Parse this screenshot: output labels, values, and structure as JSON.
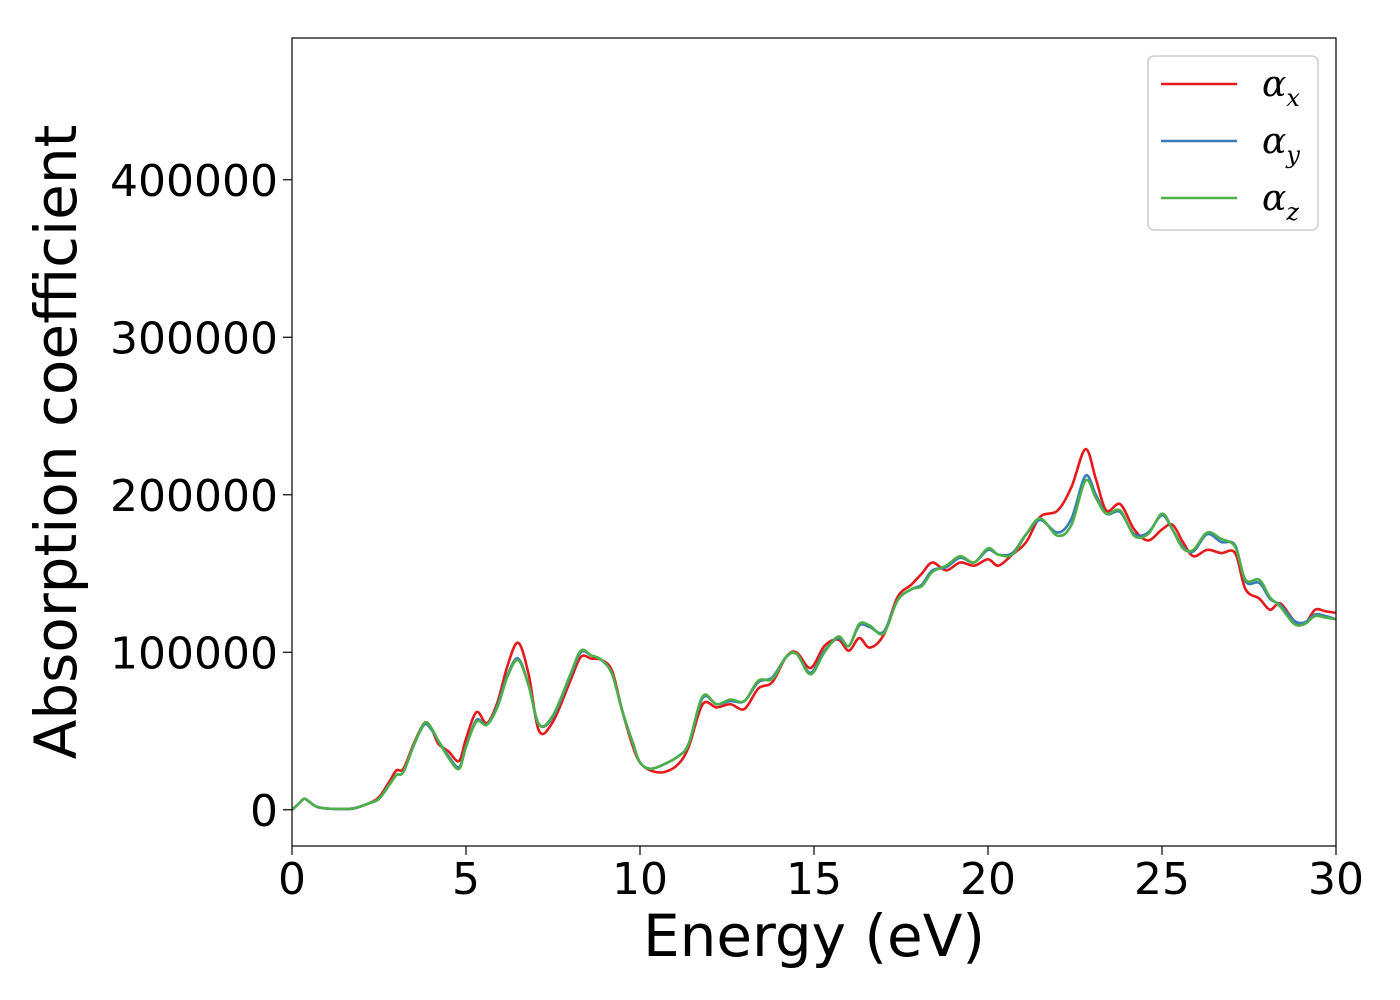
{
  "chart_data": {
    "type": "line",
    "title": "",
    "xlabel": "Energy (eV)",
    "ylabel": "Absorption coefficient",
    "xlim": [
      0,
      30
    ],
    "ylim": [
      -23000,
      490000
    ],
    "xticks": [
      0,
      5,
      10,
      15,
      20,
      25,
      30
    ],
    "xtick_labels": [
      "0",
      "5",
      "10",
      "15",
      "20",
      "25",
      "30"
    ],
    "yticks": [
      0,
      100000,
      200000,
      300000,
      400000
    ],
    "ytick_labels": [
      "0",
      "100000",
      "200000",
      "300000",
      "400000"
    ],
    "grid": false,
    "legend_position": "top-right",
    "series": [
      {
        "name": "α",
        "subscript": "x",
        "color": "#e41a1c",
        "points": [
          [
            0,
            0
          ],
          [
            0.2,
            4000
          ],
          [
            0.35,
            7000
          ],
          [
            0.5,
            5000
          ],
          [
            0.7,
            2000
          ],
          [
            1,
            800
          ],
          [
            1.5,
            500
          ],
          [
            1.8,
            1000
          ],
          [
            2.2,
            4000
          ],
          [
            2.5,
            8000
          ],
          [
            2.8,
            18000
          ],
          [
            3,
            25000
          ],
          [
            3.2,
            26000
          ],
          [
            3.5,
            42000
          ],
          [
            3.8,
            55000
          ],
          [
            4,
            52000
          ],
          [
            4.2,
            42000
          ],
          [
            4.5,
            37000
          ],
          [
            4.8,
            31000
          ],
          [
            5,
            45000
          ],
          [
            5.3,
            62000
          ],
          [
            5.6,
            55000
          ],
          [
            5.9,
            68000
          ],
          [
            6.2,
            92000
          ],
          [
            6.5,
            106000
          ],
          [
            6.8,
            86000
          ],
          [
            7.1,
            50000
          ],
          [
            7.5,
            56000
          ],
          [
            8,
            82000
          ],
          [
            8.3,
            97000
          ],
          [
            8.6,
            96000
          ],
          [
            8.9,
            95000
          ],
          [
            9.2,
            88000
          ],
          [
            9.5,
            62000
          ],
          [
            9.8,
            40000
          ],
          [
            10,
            30000
          ],
          [
            10.3,
            25000
          ],
          [
            10.7,
            24000
          ],
          [
            11.1,
            29000
          ],
          [
            11.4,
            40000
          ],
          [
            11.8,
            67000
          ],
          [
            12.2,
            65000
          ],
          [
            12.6,
            67000
          ],
          [
            13,
            64000
          ],
          [
            13.4,
            77000
          ],
          [
            13.8,
            81000
          ],
          [
            14.2,
            97000
          ],
          [
            14.5,
            100000
          ],
          [
            14.9,
            90000
          ],
          [
            15.3,
            104000
          ],
          [
            15.7,
            108000
          ],
          [
            16,
            101000
          ],
          [
            16.3,
            109000
          ],
          [
            16.6,
            103000
          ],
          [
            17,
            111000
          ],
          [
            17.4,
            135000
          ],
          [
            17.8,
            143000
          ],
          [
            18.1,
            150000
          ],
          [
            18.4,
            157000
          ],
          [
            18.8,
            152000
          ],
          [
            19.2,
            157000
          ],
          [
            19.6,
            155000
          ],
          [
            20,
            159000
          ],
          [
            20.3,
            155000
          ],
          [
            20.7,
            162000
          ],
          [
            21.1,
            170000
          ],
          [
            21.5,
            186000
          ],
          [
            22,
            190000
          ],
          [
            22.4,
            205000
          ],
          [
            22.8,
            229000
          ],
          [
            23.1,
            210000
          ],
          [
            23.4,
            190000
          ],
          [
            23.8,
            194000
          ],
          [
            24.2,
            178000
          ],
          [
            24.6,
            171000
          ],
          [
            25,
            178000
          ],
          [
            25.3,
            181000
          ],
          [
            25.6,
            170000
          ],
          [
            25.9,
            161000
          ],
          [
            26.3,
            165000
          ],
          [
            26.7,
            163000
          ],
          [
            27.1,
            163000
          ],
          [
            27.4,
            140000
          ],
          [
            27.8,
            134000
          ],
          [
            28.1,
            127000
          ],
          [
            28.4,
            131000
          ],
          [
            28.8,
            120000
          ],
          [
            29.1,
            118000
          ],
          [
            29.4,
            127000
          ],
          [
            29.7,
            126000
          ],
          [
            30,
            125000
          ]
        ]
      },
      {
        "name": "α",
        "subscript": "y",
        "color": "#377eb8",
        "points": [
          [
            0,
            0
          ],
          [
            0.2,
            4000
          ],
          [
            0.35,
            7000
          ],
          [
            0.5,
            5000
          ],
          [
            0.7,
            2000
          ],
          [
            1,
            800
          ],
          [
            1.5,
            500
          ],
          [
            1.8,
            1000
          ],
          [
            2.2,
            4000
          ],
          [
            2.5,
            7000
          ],
          [
            2.8,
            16000
          ],
          [
            3,
            22000
          ],
          [
            3.2,
            24000
          ],
          [
            3.5,
            41000
          ],
          [
            3.8,
            54000
          ],
          [
            4,
            51000
          ],
          [
            4.2,
            44000
          ],
          [
            4.5,
            34000
          ],
          [
            4.8,
            27000
          ],
          [
            5,
            40000
          ],
          [
            5.3,
            57000
          ],
          [
            5.6,
            54000
          ],
          [
            5.9,
            66000
          ],
          [
            6.2,
            86000
          ],
          [
            6.5,
            96000
          ],
          [
            6.8,
            79000
          ],
          [
            7.1,
            54000
          ],
          [
            7.5,
            59000
          ],
          [
            8,
            85000
          ],
          [
            8.3,
            100000
          ],
          [
            8.6,
            98000
          ],
          [
            8.9,
            95000
          ],
          [
            9.2,
            86000
          ],
          [
            9.5,
            62000
          ],
          [
            9.8,
            42000
          ],
          [
            10,
            30000
          ],
          [
            10.3,
            26000
          ],
          [
            10.7,
            29000
          ],
          [
            11.1,
            34000
          ],
          [
            11.4,
            42000
          ],
          [
            11.8,
            71000
          ],
          [
            12.2,
            67000
          ],
          [
            12.6,
            69000
          ],
          [
            13,
            69000
          ],
          [
            13.4,
            81000
          ],
          [
            13.8,
            84000
          ],
          [
            14.2,
            97000
          ],
          [
            14.5,
            99000
          ],
          [
            14.9,
            87000
          ],
          [
            15.3,
            101000
          ],
          [
            15.7,
            109000
          ],
          [
            16,
            104000
          ],
          [
            16.3,
            117000
          ],
          [
            16.6,
            116000
          ],
          [
            17,
            113000
          ],
          [
            17.4,
            133000
          ],
          [
            17.8,
            140000
          ],
          [
            18.1,
            143000
          ],
          [
            18.4,
            152000
          ],
          [
            18.8,
            154000
          ],
          [
            19.2,
            160000
          ],
          [
            19.6,
            157000
          ],
          [
            20,
            165000
          ],
          [
            20.3,
            162000
          ],
          [
            20.7,
            163000
          ],
          [
            21.1,
            175000
          ],
          [
            21.5,
            184000
          ],
          [
            22,
            176000
          ],
          [
            22.4,
            185000
          ],
          [
            22.8,
            212000
          ],
          [
            23.1,
            200000
          ],
          [
            23.4,
            188000
          ],
          [
            23.8,
            189000
          ],
          [
            24.2,
            175000
          ],
          [
            24.6,
            176000
          ],
          [
            25,
            187000
          ],
          [
            25.3,
            178000
          ],
          [
            25.6,
            167000
          ],
          [
            25.9,
            164000
          ],
          [
            26.3,
            175000
          ],
          [
            26.7,
            170000
          ],
          [
            27.1,
            168000
          ],
          [
            27.4,
            145000
          ],
          [
            27.8,
            144000
          ],
          [
            28.1,
            134000
          ],
          [
            28.4,
            130000
          ],
          [
            28.8,
            120000
          ],
          [
            29.1,
            119000
          ],
          [
            29.4,
            124000
          ],
          [
            29.7,
            123000
          ],
          [
            30,
            121000
          ]
        ]
      },
      {
        "name": "α",
        "subscript": "z",
        "color": "#4daf4a",
        "points": [
          [
            0,
            0
          ],
          [
            0.2,
            4000
          ],
          [
            0.35,
            7000
          ],
          [
            0.5,
            5000
          ],
          [
            0.7,
            2000
          ],
          [
            1,
            800
          ],
          [
            1.5,
            500
          ],
          [
            1.8,
            1000
          ],
          [
            2.2,
            4000
          ],
          [
            2.5,
            7000
          ],
          [
            2.8,
            16000
          ],
          [
            3,
            22000
          ],
          [
            3.2,
            24000
          ],
          [
            3.5,
            41000
          ],
          [
            3.8,
            55000
          ],
          [
            4,
            52000
          ],
          [
            4.2,
            44000
          ],
          [
            4.5,
            33000
          ],
          [
            4.8,
            26000
          ],
          [
            5,
            40000
          ],
          [
            5.3,
            56000
          ],
          [
            5.6,
            54000
          ],
          [
            5.9,
            65000
          ],
          [
            6.2,
            85000
          ],
          [
            6.5,
            95000
          ],
          [
            6.8,
            79000
          ],
          [
            7.1,
            54000
          ],
          [
            7.5,
            60000
          ],
          [
            8,
            86000
          ],
          [
            8.3,
            101000
          ],
          [
            8.6,
            98000
          ],
          [
            8.9,
            95000
          ],
          [
            9.2,
            86000
          ],
          [
            9.5,
            62000
          ],
          [
            9.8,
            42000
          ],
          [
            10,
            30000
          ],
          [
            10.3,
            26000
          ],
          [
            10.7,
            29000
          ],
          [
            11.1,
            34000
          ],
          [
            11.4,
            42000
          ],
          [
            11.8,
            72000
          ],
          [
            12.2,
            67000
          ],
          [
            12.6,
            70000
          ],
          [
            13,
            69000
          ],
          [
            13.4,
            82000
          ],
          [
            13.8,
            83000
          ],
          [
            14.2,
            97000
          ],
          [
            14.5,
            99000
          ],
          [
            14.9,
            86000
          ],
          [
            15.3,
            100000
          ],
          [
            15.7,
            110000
          ],
          [
            16,
            104000
          ],
          [
            16.3,
            118000
          ],
          [
            16.6,
            117000
          ],
          [
            17,
            112000
          ],
          [
            17.4,
            133000
          ],
          [
            17.8,
            140000
          ],
          [
            18.1,
            142000
          ],
          [
            18.4,
            151000
          ],
          [
            18.8,
            155000
          ],
          [
            19.2,
            161000
          ],
          [
            19.6,
            157000
          ],
          [
            20,
            166000
          ],
          [
            20.3,
            162000
          ],
          [
            20.7,
            162000
          ],
          [
            21.1,
            175000
          ],
          [
            21.5,
            185000
          ],
          [
            22,
            174000
          ],
          [
            22.4,
            181000
          ],
          [
            22.8,
            209000
          ],
          [
            23.1,
            198000
          ],
          [
            23.4,
            188000
          ],
          [
            23.8,
            190000
          ],
          [
            24.2,
            174000
          ],
          [
            24.6,
            175000
          ],
          [
            25,
            188000
          ],
          [
            25.3,
            178000
          ],
          [
            25.6,
            166000
          ],
          [
            25.9,
            165000
          ],
          [
            26.3,
            176000
          ],
          [
            26.7,
            172000
          ],
          [
            27.1,
            167000
          ],
          [
            27.4,
            146000
          ],
          [
            27.8,
            146000
          ],
          [
            28.1,
            135000
          ],
          [
            28.4,
            129000
          ],
          [
            28.8,
            118000
          ],
          [
            29.1,
            118000
          ],
          [
            29.4,
            123000
          ],
          [
            29.7,
            122000
          ],
          [
            30,
            121000
          ]
        ]
      }
    ]
  }
}
